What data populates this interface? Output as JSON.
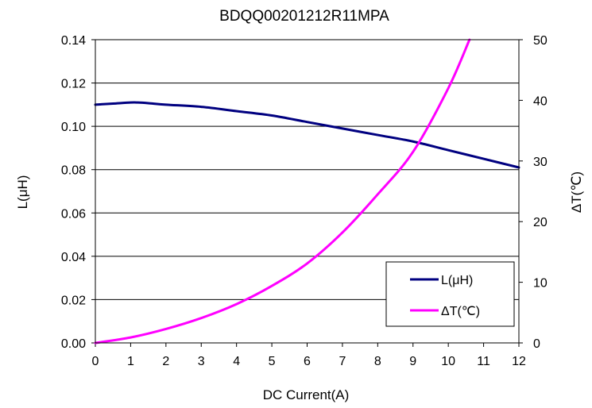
{
  "chart_data": {
    "type": "line",
    "title": "BDQQ00201212R11MPA",
    "xlabel": "DC Current(A)",
    "ylabel": "L(μH)",
    "y2label": "ΔT(℃)",
    "xlim": [
      0,
      12
    ],
    "ylim": [
      0,
      0.14
    ],
    "y2lim": [
      0,
      50
    ],
    "xticks": [
      0,
      1,
      2,
      3,
      4,
      5,
      6,
      7,
      8,
      9,
      10,
      11,
      12
    ],
    "yticks": [
      "0.00",
      "0.02",
      "0.04",
      "0.06",
      "0.08",
      "0.10",
      "0.12",
      "0.14"
    ],
    "y2ticks": [
      0,
      10,
      20,
      30,
      40,
      50
    ],
    "grid": "horizontal",
    "legend": "bottom-right",
    "series": [
      {
        "name": "L(μH)",
        "axis": "left",
        "color": "#000080",
        "x": [
          0,
          0.5,
          1,
          1.2,
          1.5,
          2,
          3,
          4,
          5,
          6,
          7,
          8,
          9,
          10,
          11,
          12
        ],
        "y": [
          0.11,
          0.1105,
          0.111,
          0.111,
          0.1107,
          0.11,
          0.109,
          0.107,
          0.105,
          0.102,
          0.099,
          0.096,
          0.093,
          0.089,
          0.085,
          0.081
        ]
      },
      {
        "name": "ΔT(℃)",
        "axis": "right",
        "color": "#ff00ff",
        "x": [
          0,
          1,
          2,
          3,
          4,
          5,
          6,
          7,
          8,
          9,
          10,
          10.6
        ],
        "y": [
          0,
          0.9,
          2.3,
          4.1,
          6.4,
          9.4,
          13.1,
          18.2,
          24.5,
          31.5,
          42.0,
          50.0
        ]
      }
    ]
  }
}
